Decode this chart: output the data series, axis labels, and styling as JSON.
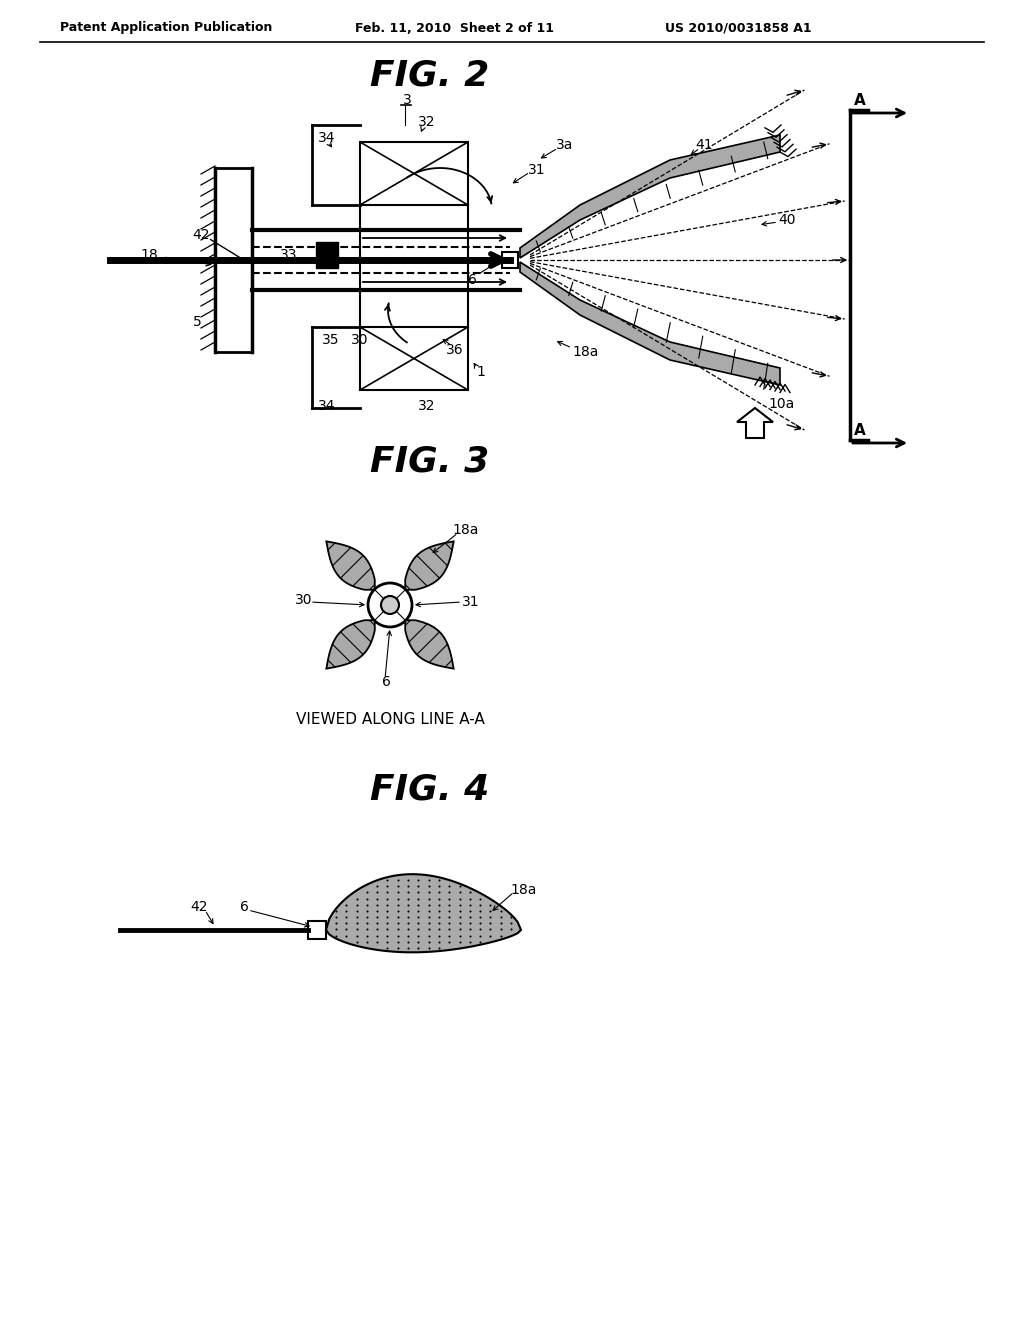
{
  "bg_color": "#ffffff",
  "header_left": "Patent Application Publication",
  "header_mid": "Feb. 11, 2010  Sheet 2 of 11",
  "header_right": "US 2010/0031858 A1",
  "fig2_title": "FIG. 2",
  "fig3_title": "FIG. 3",
  "fig4_title": "FIG. 4",
  "fig3_caption": "VIEWED ALONG LINE A-A",
  "line_color": "#000000",
  "fill_gray": "#888888",
  "fill_dark": "#555555"
}
